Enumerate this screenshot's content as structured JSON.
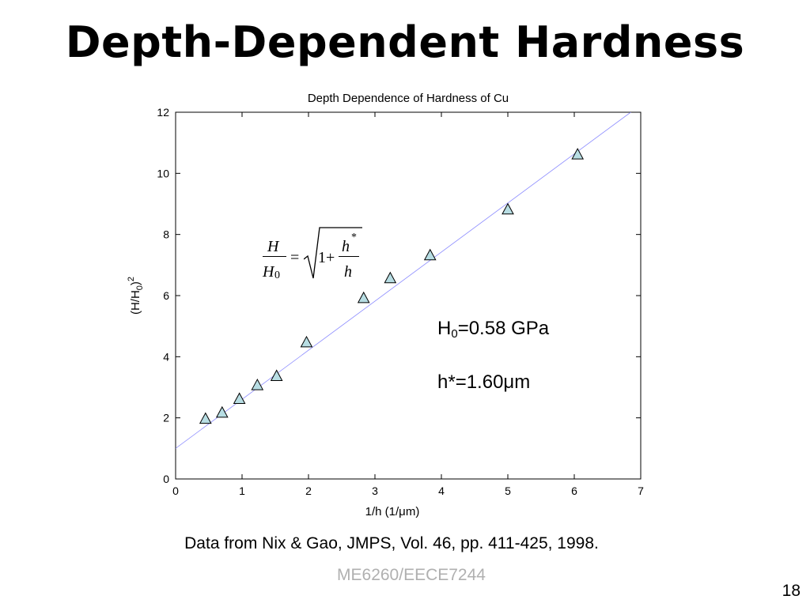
{
  "slide": {
    "title": "Depth-Dependent Hardness",
    "source_text": "Data from Nix & Gao, JMPS, Vol. 46, pp. 411-425, 1998.",
    "course_code": "ME6260/EECE7244",
    "page_number": "18"
  },
  "annotations": {
    "h0_symbol": "H",
    "h0_sub": "0",
    "h0_value": "=0.58 GPa",
    "hstar_symbol": "h*",
    "hstar_value": "=1.60μm"
  },
  "formula": {
    "lhs_num": "H",
    "lhs_den_base": "H",
    "lhs_den_sub": "0",
    "equals": "=",
    "one_plus": "1+",
    "rhs_num": "h",
    "rhs_num_sup": "*",
    "rhs_den": "h"
  },
  "chart_data": {
    "type": "scatter",
    "title": "Depth Dependence of Hardness of Cu",
    "xlabel": "1/h (1/μm)",
    "ylabel": "(H/H0)^2",
    "xlim": [
      0,
      7
    ],
    "ylim": [
      0,
      12
    ],
    "x_ticks": [
      0,
      1,
      2,
      3,
      4,
      5,
      6,
      7
    ],
    "y_ticks": [
      0,
      2,
      4,
      6,
      8,
      10,
      12
    ],
    "grid": false,
    "marker": "triangle",
    "marker_color": "#b7dde3",
    "line_color": "#8a8aff",
    "series": [
      {
        "x": [
          0.45,
          0.7,
          0.96,
          1.23,
          1.52,
          1.97,
          2.83,
          3.23,
          3.83,
          5.0,
          6.05
        ],
        "y": [
          1.95,
          2.15,
          2.6,
          3.05,
          3.35,
          4.45,
          5.9,
          6.55,
          7.3,
          8.8,
          10.6
        ]
      }
    ],
    "fit_line": {
      "x": [
        0,
        6.85
      ],
      "y": [
        1.0,
        12.0
      ]
    }
  }
}
